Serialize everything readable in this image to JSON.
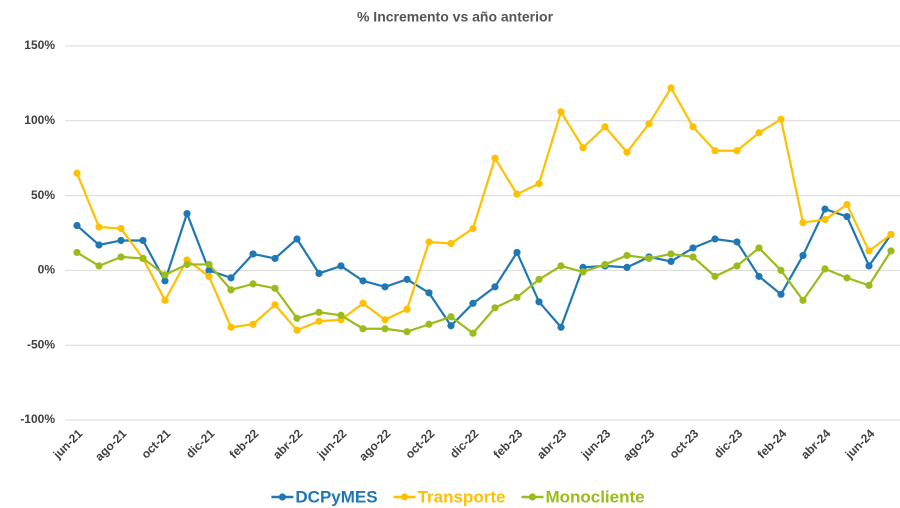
{
  "chart_data": {
    "type": "line",
    "title": "% Incremento vs año anterior",
    "categories": [
      "jun-21",
      null,
      "ago-21",
      null,
      "oct-21",
      null,
      "dic-21",
      null,
      "feb-22",
      null,
      "abr-22",
      null,
      "jun-22",
      null,
      "ago-22",
      null,
      "oct-22",
      null,
      "dic-22",
      null,
      "feb-23",
      null,
      "abr-23",
      null,
      "jun-23",
      null,
      "ago-23",
      null,
      "oct-23",
      null,
      "dic-23",
      null,
      "feb-24",
      null,
      "abr-24",
      null,
      "jun-24",
      null
    ],
    "series": [
      {
        "name": "DCPyMES",
        "color": "#1f78b4",
        "values": [
          30,
          17,
          20,
          20,
          -7,
          38,
          0,
          -5,
          11,
          8,
          21,
          -2,
          3,
          -7,
          -11,
          -6,
          -15,
          -37,
          -22,
          -11,
          12,
          -21,
          -38,
          2,
          3,
          2,
          9,
          6,
          15,
          21,
          19,
          -4,
          -16,
          10,
          41,
          36,
          3,
          24
        ]
      },
      {
        "name": "Transporte",
        "color": "#ffc000",
        "values": [
          65,
          29,
          28,
          8,
          -20,
          7,
          -4,
          -38,
          -36,
          -23,
          -40,
          -34,
          -33,
          -22,
          -33,
          -26,
          19,
          18,
          28,
          75,
          51,
          58,
          106,
          82,
          96,
          79,
          98,
          122,
          96,
          80,
          80,
          92,
          101,
          32,
          34,
          44,
          13,
          24
        ]
      },
      {
        "name": "Monocliente",
        "color": "#9bbb1b",
        "values": [
          12,
          3,
          9,
          8,
          -3,
          4,
          4,
          -13,
          -9,
          -12,
          -32,
          -28,
          -30,
          -39,
          -39,
          -41,
          -36,
          -31,
          -42,
          -25,
          -18,
          -6,
          3,
          -1,
          4,
          10,
          8,
          11,
          9,
          -4,
          3,
          15,
          0,
          -20,
          1,
          -5,
          -10,
          13
        ]
      }
    ],
    "ylim": [
      -100,
      150
    ],
    "yticks": [
      {
        "value": 150,
        "label": "150%"
      },
      {
        "value": 100,
        "label": "100%"
      },
      {
        "value": 50,
        "label": "50%"
      },
      {
        "value": 0,
        "label": "0%"
      },
      {
        "value": -50,
        "label": "-50%"
      },
      {
        "value": -100,
        "label": "-100%"
      }
    ],
    "grid": true,
    "legend": "bottom"
  }
}
